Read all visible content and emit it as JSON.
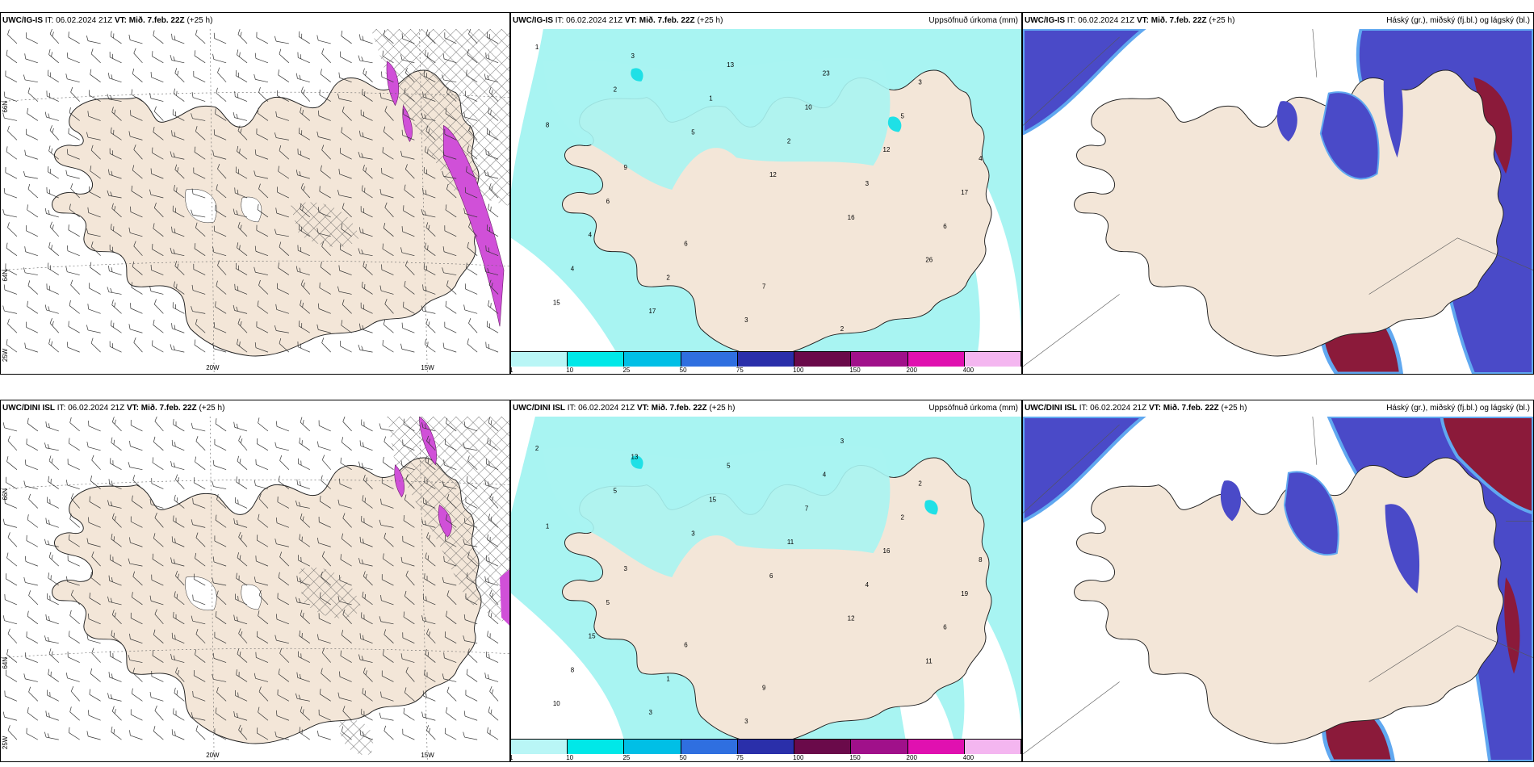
{
  "panels": [
    {
      "model": "UWC/IG-IS",
      "it_label": "IT:",
      "it_value": "06.02.2024 21Z",
      "vt_label": "VT:",
      "vt_value": "Mið. 7.feb. 22Z",
      "lead": "(+25 h)",
      "right_title": ""
    },
    {
      "model": "UWC/IG-IS",
      "it_label": "IT:",
      "it_value": "06.02.2024 21Z",
      "vt_label": "VT:",
      "vt_value": "Mið. 7.feb. 22Z",
      "lead": "(+25 h)",
      "right_title": "Uppsöfnuð úrkoma (mm)"
    },
    {
      "model": "UWC/IG-IS",
      "it_label": "IT:",
      "it_value": "06.02.2024 21Z",
      "vt_label": "VT:",
      "vt_value": "Mið. 7.feb. 22Z",
      "lead": "(+25 h)",
      "right_title": "Háský (gr.), miðský (fj.bl.) og lágský (bl.)"
    },
    {
      "model": "UWC/DINI ISL",
      "it_label": "IT:",
      "it_value": "06.02.2024 21Z",
      "vt_label": "VT:",
      "vt_value": "Mið. 7.feb. 22Z",
      "lead": "(+25 h)",
      "right_title": ""
    },
    {
      "model": "UWC/DINI ISL",
      "it_label": "IT:",
      "it_value": "06.02.2024 21Z",
      "vt_label": "VT:",
      "vt_value": "Mið. 7.feb. 22Z",
      "lead": "(+25 h)",
      "right_title": "Uppsöfnuð úrkoma (mm)"
    },
    {
      "model": "UWC/DINI ISL",
      "it_label": "IT:",
      "it_value": "06.02.2024 21Z",
      "vt_label": "VT:",
      "vt_value": "Mið. 7.feb. 22Z",
      "lead": "(+25 h)",
      "right_title": "Háský (gr.), miðský (fj.bl.) og lágský (bl.)"
    }
  ],
  "wind_axes": {
    "lon": [
      "20W",
      "15W"
    ],
    "lat": [
      "66N",
      "64N",
      "25W"
    ]
  },
  "precip_scale": {
    "ticks": [
      "1",
      "10",
      "25",
      "50",
      "75",
      "100",
      "150",
      "200",
      "400"
    ],
    "colors": [
      "#b9f6f6",
      "#00e8e8",
      "#00bfe6",
      "#2f6fe0",
      "#2a2faa",
      "#6a0a4a",
      "#a0108a",
      "#e010b0",
      "#f4b6f0"
    ]
  },
  "colors": {
    "land": "#f3e6d8",
    "wind_barb": "#333333",
    "precip_light": "#a8f4f2",
    "precip_med": "#1fe0e6",
    "high_cloud_dark": "#8b1a3a",
    "mid_cloud": "#4a4ac8",
    "low_cloud": "#60a8f0",
    "magenta": "#d050d8"
  },
  "precip_labels_top": [
    "1",
    "2",
    "5",
    "12",
    "16",
    "26",
    "15",
    "3",
    "1",
    "2",
    "3",
    "6",
    "4",
    "17",
    "13",
    "10",
    "12",
    "17",
    "4",
    "2",
    "3",
    "23",
    "5",
    "4",
    "6",
    "6",
    "7",
    "2",
    "3",
    "8",
    "9"
  ],
  "precip_labels_bottom": [
    "2",
    "5",
    "3",
    "6",
    "12",
    "11",
    "10",
    "13",
    "15",
    "11",
    "4",
    "6",
    "8",
    "3",
    "5",
    "7",
    "16",
    "19",
    "15",
    "1",
    "3",
    "4",
    "2",
    "8",
    "5",
    "6",
    "9",
    "3",
    "2",
    "1",
    "3"
  ]
}
